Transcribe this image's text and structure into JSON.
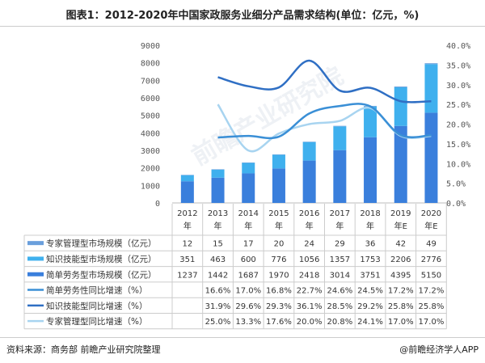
{
  "title": "图表1：2012-2020年中国家政服务业细分产品需求结构(单位：亿元，%)",
  "footer": {
    "source": "资料来源：商务部 前瞻产业研究院整理",
    "brand": "@前瞻经济学人APP"
  },
  "watermark": "前瞻产业研究院",
  "chart_data": {
    "type": "bar+line",
    "categories": [
      "2012年",
      "2013年",
      "2014年",
      "2015年",
      "2016年",
      "2017年",
      "2018年",
      "2019年E",
      "2020年E"
    ],
    "left_axis": {
      "ylim": [
        0,
        9000
      ],
      "ticks": [
        "0",
        "1000",
        "2000",
        "3000",
        "4000",
        "5000",
        "6000",
        "7000",
        "8000",
        "9000"
      ]
    },
    "right_axis": {
      "ylim": [
        0,
        40
      ],
      "ticks": [
        "0.0%",
        "5.0%",
        "10.0%",
        "15.0%",
        "20.0%",
        "25.0%",
        "30.0%",
        "35.0%",
        "40.0%"
      ]
    },
    "bar_series": [
      {
        "name": "专家管理型市场规模（亿元）",
        "color": "#6a9fdc",
        "values": [
          12,
          15,
          17,
          20,
          24,
          29,
          36,
          42,
          49
        ]
      },
      {
        "name": "知识技能型市场规模（亿元）",
        "color": "#3fb0ee",
        "values": [
          351,
          463,
          600,
          776,
          1056,
          1357,
          1753,
          2206,
          2776
        ]
      },
      {
        "name": "简单劳务型市场规模（亿元）",
        "color": "#3a7fdc",
        "values": [
          1237,
          1442,
          1687,
          1970,
          2418,
          3014,
          3751,
          4395,
          5150
        ]
      }
    ],
    "line_series": [
      {
        "name": "简单劳务性同比增速（%）",
        "color": "#3a8fd6",
        "values": [
          null,
          16.6,
          17.0,
          16.8,
          22.7,
          24.6,
          24.5,
          17.2,
          17.2
        ],
        "labels": [
          "",
          "16.6%",
          "17.0%",
          "16.8%",
          "22.7%",
          "24.6%",
          "24.5%",
          "17.2%",
          "17.2%"
        ]
      },
      {
        "name": "知识技能型同比增速（%）",
        "color": "#2f6fc4",
        "values": [
          null,
          31.9,
          29.6,
          29.3,
          36.1,
          28.5,
          29.2,
          25.8,
          25.8
        ],
        "labels": [
          "",
          "31.9%",
          "29.6%",
          "29.3%",
          "36.1%",
          "28.5%",
          "29.2%",
          "25.8%",
          "25.8%"
        ]
      },
      {
        "name": "专家管理型同比增速（%）",
        "color": "#a8d4f0",
        "values": [
          null,
          25.0,
          13.3,
          17.6,
          20.0,
          20.8,
          24.1,
          17.0,
          17.0
        ],
        "labels": [
          "",
          "25.0%",
          "13.3%",
          "17.6%",
          "20.0%",
          "20.8%",
          "24.1%",
          "17.0%",
          "17.0%"
        ]
      }
    ]
  }
}
